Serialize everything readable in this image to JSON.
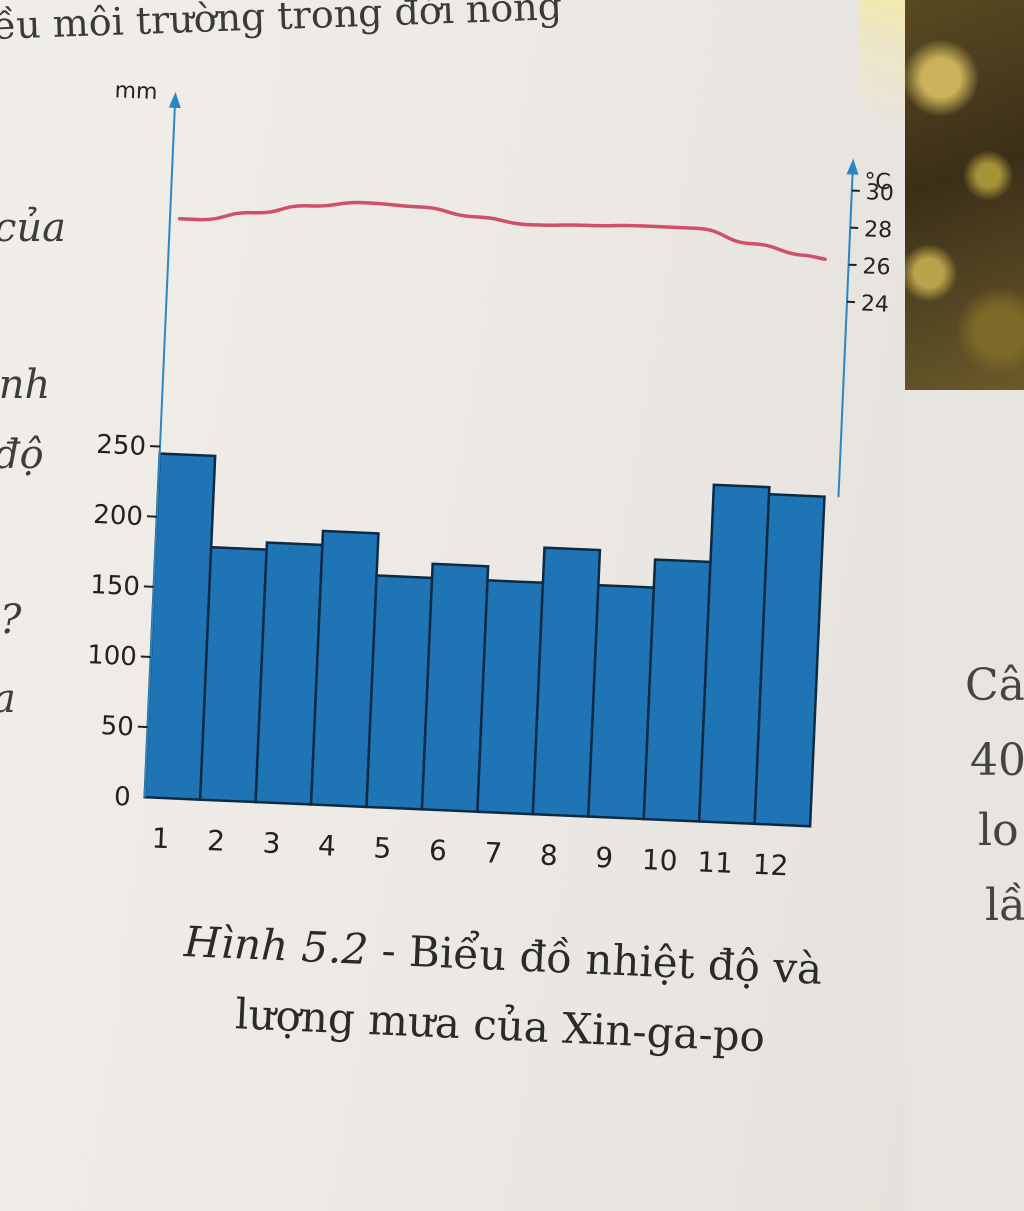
{
  "header": {
    "text": "ều môi trường trong đới nóng"
  },
  "left_margin": {
    "words": [
      "của",
      "ình",
      "độ",
      "?",
      "a"
    ]
  },
  "right_page": {
    "words": [
      "Câ",
      "40",
      "lo",
      "lầ"
    ]
  },
  "caption": {
    "figure": "Hình 5.2",
    "text_line1": " - Biểu đồ nhiệt độ và",
    "text_line2": "lượng mưa của Xin-ga-po"
  },
  "chart_data": {
    "type": "bar",
    "categories": [
      "1",
      "2",
      "3",
      "4",
      "5",
      "6",
      "7",
      "8",
      "9",
      "10",
      "11",
      "12"
    ],
    "series": [
      {
        "type": "bar",
        "axis": "left",
        "values": [
          245,
          180,
          185,
          195,
          165,
          175,
          165,
          190,
          165,
          185,
          240,
          235
        ],
        "color": "#1f74b6"
      },
      {
        "type": "line",
        "axis": "right",
        "values": [
          26.9,
          27.4,
          27.9,
          28.2,
          28.1,
          27.7,
          27.4,
          27.5,
          27.6,
          27.6,
          26.9,
          26.4
        ],
        "color": "#d0506a"
      }
    ],
    "left_axis": {
      "unit": "mm",
      "ticks": [
        0,
        50,
        100,
        150,
        200,
        250
      ],
      "ylim": [
        0,
        500
      ]
    },
    "right_axis": {
      "unit": "°C",
      "ticks": [
        24,
        26,
        28,
        30
      ],
      "ylim": [
        -4.3,
        33.5
      ]
    },
    "grid": false
  }
}
